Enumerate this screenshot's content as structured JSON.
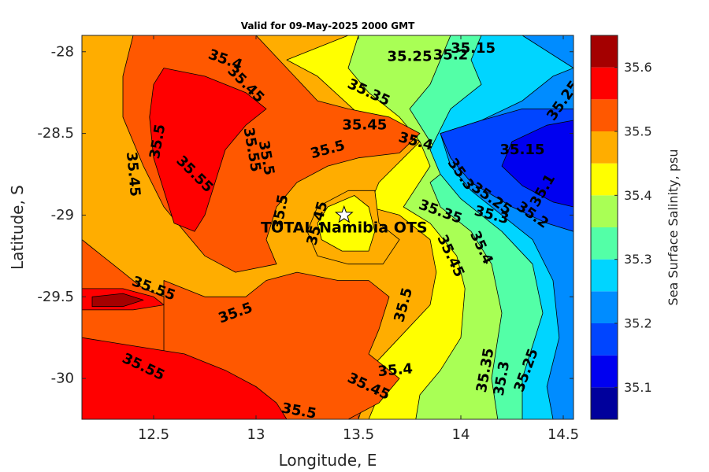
{
  "chart_data": {
    "type": "heatmap",
    "subtype": "filled-contour",
    "title": "Valid for 09-May-2025 2000 GMT",
    "xlabel": "Longitude, E",
    "ylabel": "Latitude, S",
    "colorbar_label": "Sea Surface Salinity, psu",
    "xlim": [
      12.15,
      14.55
    ],
    "ylim": [
      -30.25,
      -27.9
    ],
    "xticks": [
      "12.5",
      "13",
      "13.5",
      "14",
      "14.5"
    ],
    "yticks": [
      "-28",
      "-28.5",
      "-29",
      "-29.5",
      "-30"
    ],
    "colorbar_ticks": [
      "35.1",
      "35.2",
      "35.3",
      "35.4",
      "35.5",
      "35.6"
    ],
    "colorbar_levels": [
      35.05,
      35.1,
      35.15,
      35.2,
      35.25,
      35.3,
      35.35,
      35.4,
      35.45,
      35.5,
      35.55,
      35.6,
      35.65
    ],
    "colors": [
      "#00009c",
      "#0000f0",
      "#0045ff",
      "#008cff",
      "#00d5ff",
      "#53ffa7",
      "#a9ff55",
      "#ffff00",
      "#ffad00",
      "#ff5800",
      "#ff0000",
      "#a40000"
    ],
    "regions": [
      {
        "level": 35.45,
        "poly": [
          [
            12.15,
            -27.9
          ],
          [
            14.55,
            -27.9
          ],
          [
            14.55,
            -30.25
          ],
          [
            12.15,
            -30.25
          ]
        ]
      },
      {
        "level": 35.4,
        "poly": [
          [
            13.45,
            -27.9
          ],
          [
            14.55,
            -27.9
          ],
          [
            14.55,
            -30.25
          ],
          [
            13.55,
            -30.25
          ],
          [
            13.6,
            -30.1
          ],
          [
            13.55,
            -29.95
          ],
          [
            13.7,
            -29.75
          ],
          [
            13.85,
            -29.55
          ],
          [
            13.88,
            -29.35
          ],
          [
            13.85,
            -29.15
          ],
          [
            13.7,
            -29.0
          ],
          [
            13.55,
            -28.95
          ],
          [
            13.6,
            -28.8
          ],
          [
            13.72,
            -28.65
          ],
          [
            13.8,
            -28.55
          ],
          [
            13.65,
            -28.45
          ],
          [
            13.5,
            -28.38
          ],
          [
            13.3,
            -28.15
          ],
          [
            13.15,
            -28.05
          ]
        ]
      },
      {
        "level": 35.35,
        "poly": [
          [
            13.5,
            -27.9
          ],
          [
            14.55,
            -27.9
          ],
          [
            14.55,
            -30.25
          ],
          [
            13.78,
            -30.25
          ],
          [
            13.8,
            -30.1
          ],
          [
            13.9,
            -29.95
          ],
          [
            14.0,
            -29.75
          ],
          [
            14.02,
            -29.45
          ],
          [
            13.98,
            -29.25
          ],
          [
            13.85,
            -29.05
          ],
          [
            13.72,
            -28.95
          ],
          [
            13.85,
            -28.7
          ],
          [
            13.8,
            -28.55
          ],
          [
            13.7,
            -28.4
          ],
          [
            13.55,
            -28.25
          ],
          [
            13.45,
            -28.1
          ]
        ]
      },
      {
        "level": 35.3,
        "poly": [
          [
            13.95,
            -27.9
          ],
          [
            14.55,
            -27.9
          ],
          [
            14.55,
            -30.25
          ],
          [
            14.18,
            -30.25
          ],
          [
            14.15,
            -30.0
          ],
          [
            14.2,
            -29.6
          ],
          [
            14.15,
            -29.3
          ],
          [
            14.05,
            -29.1
          ],
          [
            13.9,
            -28.95
          ],
          [
            13.85,
            -28.8
          ],
          [
            13.95,
            -28.7
          ],
          [
            13.85,
            -28.55
          ],
          [
            13.75,
            -28.35
          ],
          [
            13.85,
            -28.2
          ],
          [
            13.9,
            -28.05
          ]
        ]
      },
      {
        "level": 35.25,
        "poly": [
          [
            14.1,
            -27.9
          ],
          [
            14.55,
            -27.9
          ],
          [
            14.55,
            -30.25
          ],
          [
            14.3,
            -30.25
          ],
          [
            14.3,
            -30.0
          ],
          [
            14.4,
            -29.6
          ],
          [
            14.35,
            -29.3
          ],
          [
            14.2,
            -29.1
          ],
          [
            14.0,
            -28.9
          ],
          [
            13.9,
            -28.75
          ],
          [
            13.85,
            -28.6
          ],
          [
            13.95,
            -28.35
          ],
          [
            14.1,
            -28.2
          ],
          [
            14.05,
            -28.05
          ]
        ]
      },
      {
        "level": 35.2,
        "poly": [
          [
            14.3,
            -27.9
          ],
          [
            14.55,
            -27.9
          ],
          [
            14.55,
            -30.25
          ],
          [
            14.45,
            -30.25
          ],
          [
            14.42,
            -30.05
          ],
          [
            14.48,
            -29.75
          ],
          [
            14.45,
            -29.4
          ],
          [
            14.35,
            -29.15
          ],
          [
            14.2,
            -29.0
          ],
          [
            14.05,
            -28.85
          ],
          [
            13.95,
            -28.7
          ],
          [
            13.9,
            -28.5
          ],
          [
            14.1,
            -28.42
          ],
          [
            14.3,
            -28.3
          ],
          [
            14.45,
            -28.15
          ],
          [
            14.55,
            -28.1
          ]
        ]
      },
      {
        "level": 35.15,
        "poly": [
          [
            13.9,
            -28.5
          ],
          [
            14.1,
            -28.42
          ],
          [
            14.3,
            -28.35
          ],
          [
            14.5,
            -28.35
          ],
          [
            14.55,
            -28.35
          ],
          [
            14.55,
            -29.1
          ],
          [
            14.42,
            -29.05
          ],
          [
            14.25,
            -28.95
          ],
          [
            14.05,
            -28.8
          ],
          [
            13.95,
            -28.65
          ]
        ]
      },
      {
        "level": 35.1,
        "poly": [
          [
            14.25,
            -28.55
          ],
          [
            14.42,
            -28.45
          ],
          [
            14.55,
            -28.42
          ],
          [
            14.55,
            -28.95
          ],
          [
            14.45,
            -28.92
          ],
          [
            14.3,
            -28.82
          ],
          [
            14.2,
            -28.7
          ]
        ]
      },
      {
        "level": 35.5,
        "poly": [
          [
            12.15,
            -30.25
          ],
          [
            13.5,
            -30.25
          ],
          [
            13.55,
            -30.05
          ],
          [
            13.45,
            -29.95
          ],
          [
            13.25,
            -29.85
          ],
          [
            13.05,
            -29.75
          ],
          [
            12.85,
            -29.65
          ],
          [
            12.65,
            -29.55
          ],
          [
            12.45,
            -29.45
          ],
          [
            12.3,
            -29.3
          ],
          [
            12.2,
            -29.2
          ],
          [
            12.15,
            -29.15
          ]
        ]
      },
      {
        "level": 35.5,
        "poly": [
          [
            12.55,
            -29.4
          ],
          [
            12.75,
            -29.5
          ],
          [
            12.95,
            -29.5
          ],
          [
            13.05,
            -29.4
          ],
          [
            13.2,
            -29.35
          ],
          [
            13.4,
            -29.4
          ],
          [
            13.55,
            -29.4
          ],
          [
            13.65,
            -29.5
          ],
          [
            13.6,
            -29.7
          ],
          [
            13.55,
            -29.85
          ],
          [
            13.7,
            -30.0
          ],
          [
            13.6,
            -30.15
          ],
          [
            13.45,
            -30.25
          ],
          [
            12.55,
            -30.25
          ]
        ]
      },
      {
        "level": 35.5,
        "poly": [
          [
            12.4,
            -27.9
          ],
          [
            13.0,
            -27.9
          ],
          [
            13.15,
            -28.1
          ],
          [
            13.3,
            -28.3
          ],
          [
            13.45,
            -28.35
          ],
          [
            13.65,
            -28.4
          ],
          [
            13.8,
            -28.5
          ],
          [
            13.7,
            -28.62
          ],
          [
            13.5,
            -28.65
          ],
          [
            13.35,
            -28.7
          ],
          [
            13.2,
            -28.8
          ],
          [
            13.1,
            -28.95
          ],
          [
            13.05,
            -29.15
          ],
          [
            13.1,
            -29.3
          ],
          [
            12.9,
            -29.35
          ],
          [
            12.75,
            -29.25
          ],
          [
            12.65,
            -29.1
          ],
          [
            12.55,
            -28.95
          ],
          [
            12.45,
            -28.7
          ],
          [
            12.35,
            -28.4
          ],
          [
            12.35,
            -28.15
          ]
        ]
      },
      {
        "level": 35.45,
        "poly": [
          [
            13.3,
            -28.95
          ],
          [
            13.45,
            -28.85
          ],
          [
            13.58,
            -28.85
          ],
          [
            13.6,
            -29.05
          ],
          [
            13.7,
            -29.15
          ],
          [
            13.62,
            -29.3
          ],
          [
            13.45,
            -29.3
          ],
          [
            13.3,
            -29.25
          ],
          [
            13.25,
            -29.1
          ]
        ]
      },
      {
        "level": 35.4,
        "poly": [
          [
            13.35,
            -28.95
          ],
          [
            13.48,
            -28.88
          ],
          [
            13.55,
            -28.95
          ],
          [
            13.58,
            -29.1
          ],
          [
            13.55,
            -29.22
          ],
          [
            13.42,
            -29.22
          ],
          [
            13.32,
            -29.15
          ],
          [
            13.3,
            -29.05
          ]
        ]
      },
      {
        "level": 35.55,
        "poly": [
          [
            12.15,
            -29.75
          ],
          [
            12.4,
            -29.8
          ],
          [
            12.65,
            -29.85
          ],
          [
            12.85,
            -29.95
          ],
          [
            13.0,
            -30.05
          ],
          [
            13.1,
            -30.15
          ],
          [
            13.15,
            -30.25
          ],
          [
            12.15,
            -30.25
          ]
        ]
      },
      {
        "level": 35.55,
        "poly": [
          [
            12.15,
            -29.45
          ],
          [
            12.35,
            -29.45
          ],
          [
            12.5,
            -29.5
          ],
          [
            12.55,
            -29.55
          ],
          [
            12.4,
            -29.58
          ],
          [
            12.15,
            -29.58
          ]
        ]
      },
      {
        "level": 35.55,
        "poly": [
          [
            12.55,
            -28.1
          ],
          [
            12.75,
            -28.15
          ],
          [
            12.95,
            -28.25
          ],
          [
            13.05,
            -28.35
          ],
          [
            12.95,
            -28.45
          ],
          [
            12.85,
            -28.6
          ],
          [
            12.8,
            -28.8
          ],
          [
            12.75,
            -29.0
          ],
          [
            12.7,
            -29.1
          ],
          [
            12.6,
            -29.05
          ],
          [
            12.55,
            -28.85
          ],
          [
            12.5,
            -28.65
          ],
          [
            12.48,
            -28.4
          ],
          [
            12.5,
            -28.2
          ]
        ]
      },
      {
        "level": 35.6,
        "poly": [
          [
            12.2,
            -29.5
          ],
          [
            12.35,
            -29.48
          ],
          [
            12.45,
            -29.52
          ],
          [
            12.35,
            -29.56
          ],
          [
            12.2,
            -29.56
          ]
        ]
      }
    ],
    "contour_labels": [
      {
        "text": "35.4",
        "lon": 12.85,
        "lat": -28.05,
        "angle": 20
      },
      {
        "text": "35.45",
        "lon": 12.95,
        "lat": -28.2,
        "angle": 45
      },
      {
        "text": "35.5",
        "lon": 12.52,
        "lat": -28.55,
        "angle": -80
      },
      {
        "text": "35.45",
        "lon": 12.4,
        "lat": -28.75,
        "angle": 85
      },
      {
        "text": "35.55",
        "lon": 12.7,
        "lat": -28.75,
        "angle": 45
      },
      {
        "text": "35.55",
        "lon": 12.98,
        "lat": -28.6,
        "angle": 80
      },
      {
        "text": "35.5",
        "lon": 13.05,
        "lat": -28.65,
        "angle": 80
      },
      {
        "text": "35.5",
        "lon": 13.35,
        "lat": -28.6,
        "angle": -15
      },
      {
        "text": "35.45",
        "lon": 13.53,
        "lat": -28.45,
        "angle": 0
      },
      {
        "text": "35.4",
        "lon": 13.78,
        "lat": -28.55,
        "angle": 15
      },
      {
        "text": "35.35",
        "lon": 13.55,
        "lat": -28.25,
        "angle": 25
      },
      {
        "text": "35.25",
        "lon": 13.75,
        "lat": -28.03,
        "angle": 0
      },
      {
        "text": "35.2",
        "lon": 13.95,
        "lat": -28.02,
        "angle": 0
      },
      {
        "text": "35.15",
        "lon": 14.06,
        "lat": -27.98,
        "angle": 0
      },
      {
        "text": "35.25",
        "lon": 14.5,
        "lat": -28.3,
        "angle": -55
      },
      {
        "text": "35.15",
        "lon": 14.3,
        "lat": -28.6,
        "angle": 0
      },
      {
        "text": "35.1",
        "lon": 14.4,
        "lat": -28.85,
        "angle": -60
      },
      {
        "text": "35.3",
        "lon": 14.0,
        "lat": -28.75,
        "angle": 55
      },
      {
        "text": "35.25",
        "lon": 14.15,
        "lat": -28.9,
        "angle": 35
      },
      {
        "text": "35.2",
        "lon": 14.35,
        "lat": -29.0,
        "angle": 35
      },
      {
        "text": "35.35",
        "lon": 13.9,
        "lat": -28.98,
        "angle": 20
      },
      {
        "text": "35.3",
        "lon": 14.15,
        "lat": -29.0,
        "angle": 15
      },
      {
        "text": "35.5",
        "lon": 13.12,
        "lat": -28.98,
        "angle": -80
      },
      {
        "text": "35.45",
        "lon": 13.3,
        "lat": -29.05,
        "angle": -75
      },
      {
        "text": "35.45",
        "lon": 13.95,
        "lat": -29.25,
        "angle": 65
      },
      {
        "text": "35.4",
        "lon": 14.1,
        "lat": -29.2,
        "angle": 65
      },
      {
        "text": "35.55",
        "lon": 12.5,
        "lat": -29.45,
        "angle": 20
      },
      {
        "text": "35.5",
        "lon": 12.9,
        "lat": -29.6,
        "angle": -20
      },
      {
        "text": "35.5",
        "lon": 13.72,
        "lat": -29.55,
        "angle": -75
      },
      {
        "text": "35.55",
        "lon": 12.45,
        "lat": -29.93,
        "angle": 25
      },
      {
        "text": "35.4",
        "lon": 13.68,
        "lat": -29.95,
        "angle": -5
      },
      {
        "text": "35.45",
        "lon": 13.55,
        "lat": -30.05,
        "angle": 25
      },
      {
        "text": "35.5",
        "lon": 13.21,
        "lat": -30.2,
        "angle": 10
      },
      {
        "text": "35.35",
        "lon": 14.12,
        "lat": -29.95,
        "angle": -80
      },
      {
        "text": "35.3",
        "lon": 14.2,
        "lat": -30.0,
        "angle": -80
      },
      {
        "text": "35.25",
        "lon": 14.32,
        "lat": -29.95,
        "angle": -70
      }
    ],
    "marker": {
      "label": "TOTAL Namibia OTS",
      "lon": 13.43,
      "lat": -29.0,
      "symbol": "star"
    }
  }
}
